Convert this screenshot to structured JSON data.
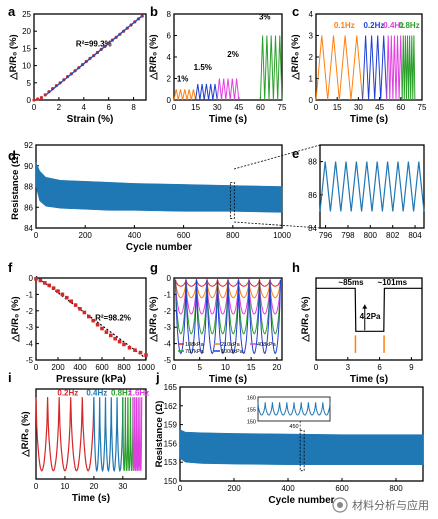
{
  "figure": {
    "watermark_text": "材料分析与应用"
  },
  "chart_data": [
    {
      "id": "a",
      "panel_letter": "a",
      "type": "line",
      "xlabel": "Strain (%)",
      "ylabel": "△R/R₀ (%)",
      "xlim": [
        0,
        9
      ],
      "ylim": [
        0,
        25
      ],
      "xticks": [
        0,
        2,
        4,
        6,
        8
      ],
      "yticks": [
        0,
        5,
        10,
        15,
        20,
        25
      ],
      "annotations": [
        {
          "text": "R²=99.3%",
          "x": 4.8,
          "y": 15.5,
          "color": "#000000"
        }
      ],
      "series": [
        {
          "color": "#d62728",
          "style": "dots",
          "x": [
            0,
            0.3,
            0.6,
            0.9,
            1.2,
            1.5,
            1.8,
            2.1,
            2.4,
            2.7,
            3.0,
            3.3,
            3.6,
            3.9,
            4.2,
            4.5,
            4.8,
            5.1,
            5.4,
            5.7,
            6.0,
            6.3,
            6.6,
            6.9,
            7.2,
            7.5,
            7.8,
            8.1,
            8.4,
            8.7
          ],
          "y": [
            0,
            0.3,
            0.7,
            1.5,
            2.4,
            3.3,
            4.2,
            5.0,
            5.9,
            6.8,
            7.6,
            8.5,
            9.4,
            10.3,
            11.2,
            12.1,
            12.9,
            13.8,
            14.7,
            15.6,
            16.5,
            17.4,
            18.2,
            19.1,
            20.0,
            20.9,
            21.8,
            22.7,
            23.6,
            24.4
          ]
        },
        {
          "color": "#1f4fb4",
          "style": "line",
          "x": [
            1.0,
            8.7
          ],
          "y": [
            1.6,
            24.5
          ]
        }
      ]
    },
    {
      "id": "b",
      "panel_letter": "b",
      "type": "line",
      "xlabel": "Time (s)",
      "ylabel": "△R/R₀ (%)",
      "xlim": [
        0,
        75
      ],
      "ylim": [
        0,
        8
      ],
      "xticks": [
        0,
        15,
        30,
        45,
        60,
        75
      ],
      "yticks": [
        0,
        2,
        4,
        6,
        8
      ],
      "annotations": [
        {
          "text": "1%",
          "x": 6,
          "y": 1.7,
          "color": "#000000"
        },
        {
          "text": "1.5%",
          "x": 20,
          "y": 2.8,
          "color": "#000000"
        },
        {
          "text": "2%",
          "x": 41,
          "y": 4.0,
          "color": "#000000"
        },
        {
          "text": "3%",
          "x": 63,
          "y": 7.5,
          "color": "#000000"
        }
      ],
      "series": [
        {
          "color": "#ff7f0e",
          "t_start": 0,
          "t_end": 15,
          "cycles": 5,
          "amplitude": 1.0
        },
        {
          "color": "#1f3fd4",
          "t_start": 15,
          "t_end": 30,
          "cycles": 5,
          "amplitude": 1.5
        },
        {
          "color": "#e040e0",
          "t_start": 30,
          "t_end": 45,
          "cycles": 5,
          "amplitude": 2.0
        },
        {
          "color": "#2ca02c",
          "t_start": 60,
          "t_end": 75,
          "cycles": 5,
          "amplitude": 6.0
        }
      ]
    },
    {
      "id": "c",
      "panel_letter": "c",
      "type": "line",
      "xlabel": "Time (s)",
      "ylabel": "△R/R₀ (%)",
      "xlim": [
        0,
        75
      ],
      "ylim": [
        0,
        4
      ],
      "xticks": [
        0,
        15,
        30,
        45,
        60,
        75
      ],
      "yticks": [
        0,
        1,
        2,
        3,
        4
      ],
      "annotations": [
        {
          "text": "0.1Hz",
          "x": 20,
          "y": 3.35,
          "color": "#ff7f0e"
        },
        {
          "text": "0.2Hz",
          "x": 41,
          "y": 3.35,
          "color": "#1f3fd4"
        },
        {
          "text": "0.4Hz",
          "x": 55,
          "y": 3.35,
          "color": "#e040e0"
        },
        {
          "text": "0.8Hz",
          "x": 66,
          "y": 3.35,
          "color": "#2ca02c"
        }
      ],
      "series": [
        {
          "color": "#ff7f0e",
          "t_start": 0,
          "t_end": 33,
          "cycles": 4,
          "amplitude": 3.0
        },
        {
          "color": "#1f3fd4",
          "t_start": 33,
          "t_end": 50,
          "cycles": 4,
          "amplitude": 3.0
        },
        {
          "color": "#e040e0",
          "t_start": 50,
          "t_end": 61,
          "cycles": 5,
          "amplitude": 3.0
        },
        {
          "color": "#2ca02c",
          "t_start": 61,
          "t_end": 70,
          "cycles": 6,
          "amplitude": 3.0
        }
      ]
    },
    {
      "id": "d",
      "panel_letter": "d",
      "type": "area",
      "xlabel": "Cycle number",
      "ylabel": "Resistance (Ω)",
      "xlim": [
        0,
        1000
      ],
      "ylim": [
        84,
        92
      ],
      "xticks": [
        0,
        200,
        400,
        600,
        800,
        1000
      ],
      "yticks": [
        84,
        86,
        88,
        90,
        92
      ],
      "series": [
        {
          "color": "#1f77b4",
          "x": [
            0,
            15,
            40,
            100,
            200,
            300,
            400,
            600,
            800,
            1000
          ],
          "upper": [
            90.3,
            89.5,
            88.9,
            88.6,
            88.5,
            88.4,
            88.3,
            88.2,
            88.1,
            88.0
          ],
          "lower": [
            88.0,
            86.6,
            86.1,
            85.9,
            85.8,
            85.7,
            85.7,
            85.6,
            85.6,
            85.5
          ]
        }
      ],
      "highlight_box": [
        790,
        805
      ]
    },
    {
      "id": "e",
      "panel_letter": "e",
      "type": "line",
      "xlabel": "",
      "ylabel": "",
      "xlim": [
        795.5,
        804.8
      ],
      "ylim": [
        84,
        89
      ],
      "xticks": [
        796,
        798,
        800,
        802,
        804
      ],
      "yticks": [
        84,
        86,
        88
      ],
      "series": [
        {
          "color": "#1f77b4",
          "t_start": 795.5,
          "t_end": 804.8,
          "cycles": 10,
          "low": 85.0,
          "high": 88.0
        }
      ]
    },
    {
      "id": "f",
      "panel_letter": "f",
      "type": "scatter",
      "xlabel": "Pressure (kPa)",
      "ylabel": "△R/R₀ (%)",
      "xlim": [
        0,
        1000
      ],
      "ylim": [
        -5,
        0
      ],
      "xticks": [
        0,
        200,
        400,
        600,
        800,
        1000
      ],
      "yticks": [
        0,
        -1,
        -2,
        -3,
        -4,
        -5
      ],
      "annotations": [
        {
          "text": "R²=98.2%",
          "x": 700,
          "y": -2.6,
          "color": "#000000"
        }
      ],
      "series": [
        {
          "color": "#d62728",
          "style": "squares",
          "x": [
            0,
            40,
            80,
            120,
            160,
            200,
            240,
            280,
            320,
            360,
            400,
            440,
            480,
            520,
            560,
            600,
            640,
            680,
            720,
            760,
            800,
            850,
            900,
            950,
            1000
          ],
          "y": [
            -0.05,
            -0.15,
            -0.3,
            -0.45,
            -0.62,
            -0.8,
            -1.0,
            -1.2,
            -1.42,
            -1.65,
            -1.88,
            -2.1,
            -2.35,
            -2.6,
            -2.85,
            -3.08,
            -3.3,
            -3.5,
            -3.7,
            -3.88,
            -4.05,
            -4.25,
            -4.4,
            -4.55,
            -4.7
          ]
        },
        {
          "color": "#000000",
          "style": "dashed",
          "x": [
            0,
            1000
          ],
          "y": [
            0.1,
            -4.9
          ]
        }
      ]
    },
    {
      "id": "g",
      "panel_letter": "g",
      "type": "line",
      "xlabel": "Time (s)",
      "ylabel": "△R/R₀ (%)",
      "xlim": [
        0,
        21
      ],
      "ylim": [
        -5,
        0
      ],
      "xticks": [
        0,
        5,
        10,
        15,
        20
      ],
      "yticks": [
        0,
        -1,
        -2,
        -3,
        -4,
        -5
      ],
      "legend": {
        "placement": "bottom",
        "entries": [
          {
            "name": "108kPa",
            "color": "#d62728"
          },
          {
            "name": "210kPa",
            "color": "#ff7f0e"
          },
          {
            "name": "408kPa",
            "color": "#e040e0"
          },
          {
            "name": "707kPa",
            "color": "#2ca02c"
          },
          {
            "name": "1000kPa",
            "color": "#1f3fd4"
          }
        ]
      },
      "series": [
        {
          "name": "108kPa",
          "color": "#d62728",
          "cycles": 10,
          "depth": -0.5
        },
        {
          "name": "210kPa",
          "color": "#ff7f0e",
          "cycles": 10,
          "depth": -1.2
        },
        {
          "name": "408kPa",
          "color": "#e040e0",
          "cycles": 10,
          "depth": -2.2
        },
        {
          "name": "707kPa",
          "color": "#2ca02c",
          "cycles": 10,
          "depth": -3.4
        },
        {
          "name": "1000kPa",
          "color": "#1f3fd4",
          "cycles": 10,
          "depth": -4.6
        }
      ]
    },
    {
      "id": "h",
      "panel_letter": "h",
      "type": "line",
      "xlabel": "Time (s)",
      "ylabel": "△R/R₀ (%)",
      "xlim": [
        0,
        10
      ],
      "ylim": [
        -7,
        1
      ],
      "xticks": [
        0,
        3,
        6,
        9
      ],
      "yticks": [],
      "annotations": [
        {
          "text": "~85ms",
          "x": 3.3,
          "y": 0.3,
          "color": "#000000"
        },
        {
          "text": "~101ms",
          "x": 7.2,
          "y": 0.3,
          "color": "#000000"
        },
        {
          "text": "4.2Pa",
          "x": 5.1,
          "y": -3.0,
          "color": "#000000"
        }
      ],
      "series": [
        {
          "color": "#000000",
          "x": [
            0,
            3.7,
            3.75,
            6.4,
            6.45,
            10
          ],
          "y": [
            0,
            0,
            -4.2,
            -4.2,
            0,
            0
          ]
        }
      ],
      "markers_x": [
        3.72,
        6.42
      ]
    },
    {
      "id": "i",
      "panel_letter": "i",
      "type": "line",
      "xlabel": "Time (s)",
      "ylabel": "△R/R₀ (%)",
      "xlim": [
        0,
        38
      ],
      "ylim": [
        -10,
        1
      ],
      "xticks": [
        0,
        10,
        20,
        30
      ],
      "yticks": [],
      "annotations": [
        {
          "text": "0.2Hz",
          "x": 11,
          "y": 0.2,
          "color": "#d62728"
        },
        {
          "text": "0.4Hz",
          "x": 21,
          "y": 0.2,
          "color": "#1f77b4"
        },
        {
          "text": "0.8Hz",
          "x": 29.5,
          "y": 0.2,
          "color": "#2ca02c"
        },
        {
          "text": "1.6Hz",
          "x": 35.5,
          "y": 0.2,
          "color": "#e040e0"
        }
      ],
      "series": [
        {
          "color": "#d62728",
          "t_start": 0,
          "t_end": 20,
          "cycles": 5,
          "depth": -9
        },
        {
          "color": "#1f77b4",
          "t_start": 20,
          "t_end": 30,
          "cycles": 5,
          "depth": -9
        },
        {
          "color": "#2ca02c",
          "t_start": 30,
          "t_end": 33.5,
          "cycles": 4,
          "depth": -9
        },
        {
          "color": "#e040e0",
          "t_start": 33.5,
          "t_end": 36.5,
          "cycles": 5,
          "depth": -9
        }
      ]
    },
    {
      "id": "j",
      "panel_letter": "j",
      "type": "area",
      "xlabel": "Cycle number",
      "ylabel": "Resistance (Ω)",
      "xlim": [
        0,
        900
      ],
      "ylim": [
        150,
        165
      ],
      "xticks": [
        0,
        200,
        400,
        600,
        800
      ],
      "yticks": [
        150,
        153,
        156,
        159,
        162,
        165
      ],
      "series": [
        {
          "color": "#1f77b4",
          "x": [
            0,
            20,
            80,
            200,
            400,
            600,
            900
          ],
          "upper": [
            158.2,
            157.8,
            157.7,
            157.6,
            157.5,
            157.4,
            157.4
          ],
          "lower": [
            153.6,
            153.0,
            152.8,
            152.7,
            152.6,
            152.6,
            152.6
          ]
        }
      ],
      "highlight_box": [
        445,
        455
      ],
      "inset": {
        "xlim": [
          445,
          455
        ],
        "ylim": [
          150,
          160
        ],
        "yticks": [
          150,
          155,
          160
        ],
        "xtick_label": "450",
        "cycles": 10,
        "low": 152.5,
        "high": 157.8,
        "color": "#1f77b4"
      }
    }
  ]
}
